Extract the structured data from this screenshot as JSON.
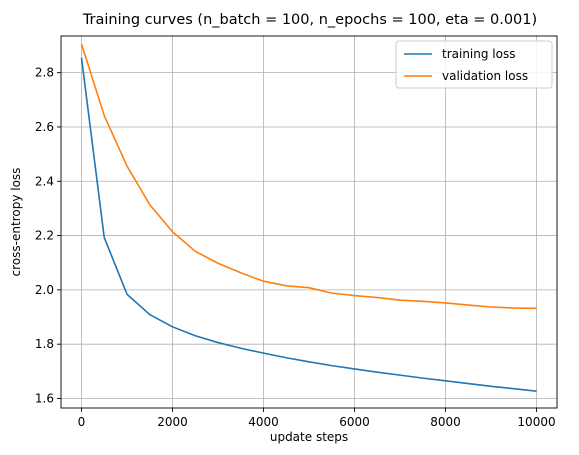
{
  "chart_data": {
    "type": "line",
    "title": "Training curves (n_batch = 100, n_epochs = 100, eta = 0.001)",
    "xlabel": "update steps",
    "ylabel": "cross-entropy loss",
    "xlim": [
      -450,
      10450
    ],
    "ylim": [
      1.565,
      2.935
    ],
    "xticks": [
      0,
      2000,
      4000,
      6000,
      8000,
      10000
    ],
    "yticks": [
      1.6,
      1.8,
      2.0,
      2.2,
      2.4,
      2.6,
      2.8
    ],
    "xtick_labels": [
      "0",
      "2000",
      "4000",
      "6000",
      "8000",
      "10000"
    ],
    "ytick_labels": [
      "1.6",
      "1.8",
      "2.0",
      "2.2",
      "2.4",
      "2.6",
      "2.8"
    ],
    "grid": true,
    "legend_position": "top-right",
    "x": [
      0,
      500,
      1000,
      1500,
      2000,
      2500,
      3000,
      3500,
      4000,
      4500,
      5000,
      5500,
      6000,
      6500,
      7000,
      7500,
      8000,
      8500,
      9000,
      9500,
      10000
    ],
    "series": [
      {
        "name": "training loss",
        "color": "#1f77b4",
        "values": [
          2.855,
          2.193,
          1.984,
          1.909,
          1.864,
          1.831,
          1.806,
          1.785,
          1.767,
          1.75,
          1.735,
          1.721,
          1.709,
          1.697,
          1.686,
          1.675,
          1.665,
          1.655,
          1.645,
          1.636,
          1.627
        ]
      },
      {
        "name": "validation loss",
        "color": "#ff7f0e",
        "values": [
          2.906,
          2.642,
          2.456,
          2.314,
          2.214,
          2.142,
          2.098,
          2.063,
          2.032,
          2.015,
          2.008,
          1.988,
          1.979,
          1.972,
          1.962,
          1.958,
          1.952,
          1.944,
          1.937,
          1.933,
          1.932
        ]
      }
    ]
  }
}
